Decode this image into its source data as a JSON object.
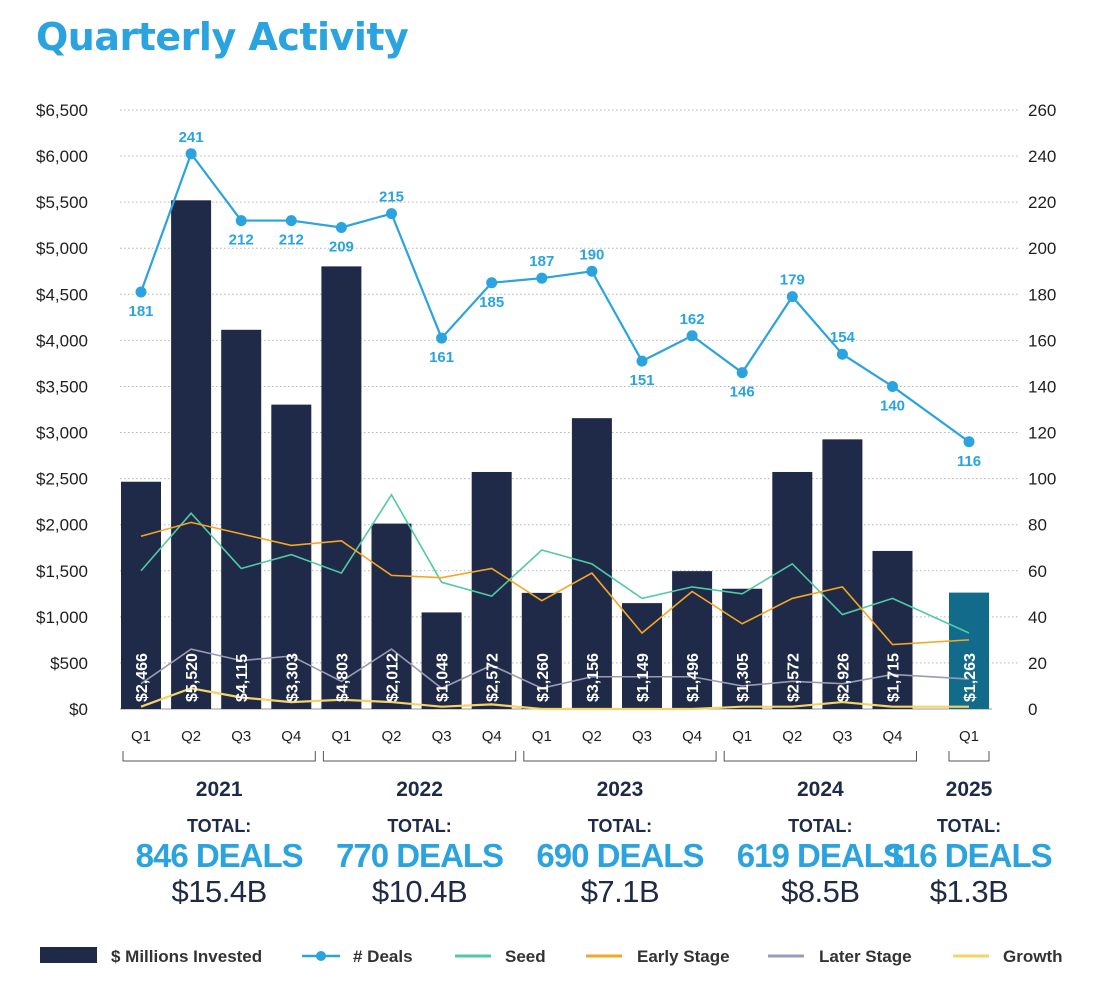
{
  "colors": {
    "title": "#2aa3df",
    "bar": "#1f2a48",
    "bar_highlight": "#136b8c",
    "deals": "#2aa3df",
    "seed": "#52c9a5",
    "early": "#f5a623",
    "later": "#9a9cb5",
    "growth": "#f6d365",
    "grid": "#b5b5b5",
    "text": "#1f2a48"
  },
  "chart_data": {
    "type": "bar",
    "title": "Quarterly Activity",
    "categories": [
      "Q1",
      "Q2",
      "Q3",
      "Q4",
      "Q1",
      "Q2",
      "Q3",
      "Q4",
      "Q1",
      "Q2",
      "Q3",
      "Q4",
      "Q1",
      "Q2",
      "Q3",
      "Q4",
      "Q1"
    ],
    "years": [
      {
        "year": "2021",
        "total_label": "TOTAL:",
        "deals": "846 DEALS",
        "amount": "$15.4B"
      },
      {
        "year": "2022",
        "total_label": "TOTAL:",
        "deals": "770 DEALS",
        "amount": "$10.4B"
      },
      {
        "year": "2023",
        "total_label": "TOTAL:",
        "deals": "690 DEALS",
        "amount": "$7.1B"
      },
      {
        "year": "2024",
        "total_label": "TOTAL:",
        "deals": "619 DEALS",
        "amount": "$8.5B"
      },
      {
        "year": "2025",
        "total_label": "TOTAL:",
        "deals": "116 DEALS",
        "amount": "$1.3B"
      }
    ],
    "series": [
      {
        "name": "$ Millions Invested",
        "type": "bar",
        "axis": "left",
        "values": [
          2466,
          5520,
          4115,
          3303,
          4803,
          2012,
          1048,
          2572,
          1260,
          3156,
          1149,
          1496,
          1305,
          2572,
          2926,
          1715,
          1263
        ],
        "labels": [
          "$2,466",
          "$5,520",
          "$4,115",
          "$3,303",
          "$4,803",
          "$2,012",
          "$1,048",
          "$2,572",
          "$1,260",
          "$3,156",
          "$1,149",
          "$1,496",
          "$1,305",
          "$2,572",
          "$2,926",
          "$1,715",
          "$1,263"
        ]
      },
      {
        "name": "# Deals",
        "type": "line",
        "axis": "right",
        "markers": true,
        "values": [
          181,
          241,
          212,
          212,
          209,
          215,
          161,
          185,
          187,
          190,
          151,
          162,
          146,
          179,
          154,
          140,
          116
        ]
      },
      {
        "name": "Seed",
        "type": "line",
        "axis": "right",
        "values": [
          60,
          85,
          61,
          67,
          59,
          93,
          55,
          49,
          69,
          63,
          48,
          53,
          50,
          63,
          41,
          48,
          33
        ]
      },
      {
        "name": "Early Stage",
        "type": "line",
        "axis": "right",
        "values": [
          75,
          81,
          76,
          71,
          73,
          58,
          57,
          61,
          47,
          59,
          33,
          51,
          37,
          48,
          53,
          28,
          30
        ]
      },
      {
        "name": "Later Stage",
        "type": "line",
        "axis": "right",
        "values": [
          11,
          26,
          21,
          23,
          12,
          26,
          9,
          19,
          9,
          14,
          14,
          14,
          10,
          12,
          11,
          15,
          13
        ]
      },
      {
        "name": "Growth",
        "type": "line",
        "axis": "right",
        "values": [
          1,
          9,
          5,
          3,
          4,
          3,
          1,
          2,
          0,
          0,
          0,
          0,
          1,
          1,
          3,
          1,
          1
        ]
      }
    ],
    "ylim_left": [
      0,
      6500
    ],
    "yticks_left": [
      "$0",
      "$500",
      "$1,000",
      "$1,500",
      "$2,000",
      "$2,500",
      "$3,000",
      "$3,500",
      "$4,000",
      "$4,500",
      "$5,000",
      "$5,500",
      "$6,000",
      "$6,500"
    ],
    "ylim_right": [
      0,
      260
    ],
    "yticks_right": [
      "0",
      "20",
      "40",
      "60",
      "80",
      "100",
      "120",
      "140",
      "160",
      "180",
      "200",
      "220",
      "240",
      "260"
    ],
    "grid": "horizontal dotted",
    "legend_position": "bottom"
  }
}
